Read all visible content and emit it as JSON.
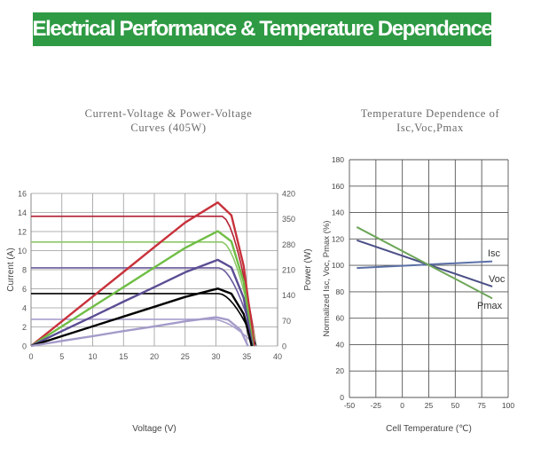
{
  "banner": {
    "text": "Electrical Performance & Temperature Dependence"
  },
  "colors": {
    "banner": "#2e9a44"
  },
  "chart_data": [
    {
      "type": "line",
      "title": "Current-Voltage & Power-Voltage Curves (405W)",
      "title_lines": [
        "Current-Voltage & Power-Voltage",
        "Curves (405W)"
      ],
      "xlabel": "Voltage (V)",
      "ylabel": "Current (A)",
      "y2label": "Power (W)",
      "xlim": [
        0,
        40
      ],
      "ylim": [
        0,
        16
      ],
      "y2lim": [
        0,
        420
      ],
      "xticks": [
        "0",
        "5",
        "10",
        "15",
        "20",
        "25",
        "30",
        "35",
        "40"
      ],
      "yticks": [
        "0",
        "2",
        "4",
        "6",
        "8",
        "10",
        "12",
        "14",
        "16"
      ],
      "y2ticks": [
        "0",
        "70",
        "140",
        "210",
        "280",
        "350",
        "420"
      ],
      "grid": true,
      "voc": 36.5,
      "series": [
        {
          "kind": "current",
          "color": "#b22234",
          "isc": 13.6,
          "knee": 31
        },
        {
          "kind": "current",
          "color": "#8cc867",
          "isc": 10.9,
          "knee": 31
        },
        {
          "kind": "current",
          "color": "#6b5a9e",
          "isc": 8.2,
          "knee": 30.5
        },
        {
          "kind": "current",
          "color": "#000000",
          "isc": 5.5,
          "knee": 30.5
        },
        {
          "kind": "current",
          "color": "#a89fcc",
          "isc": 2.8,
          "knee": 29.5
        },
        {
          "kind": "power",
          "color": "#c8323c",
          "x": [
            0,
            5,
            10,
            15,
            20,
            25,
            30.3,
            32.5,
            34.5,
            36.2
          ],
          "y": [
            0,
            68,
            136,
            204,
            272,
            340,
            395,
            360,
            220,
            0
          ]
        },
        {
          "kind": "power",
          "color": "#6fbd45",
          "x": [
            0,
            5,
            10,
            15,
            20,
            25,
            30.3,
            32.5,
            34.5,
            36
          ],
          "y": [
            0,
            54,
            108,
            162,
            216,
            270,
            316,
            288,
            176,
            0
          ]
        },
        {
          "kind": "power",
          "color": "#5b4d94",
          "x": [
            0,
            5,
            10,
            15,
            20,
            25,
            30.3,
            32.5,
            34.5,
            35.9
          ],
          "y": [
            0,
            41,
            81,
            122,
            162,
            203,
            237,
            216,
            132,
            0
          ]
        },
        {
          "kind": "power",
          "color": "#000000",
          "x": [
            0,
            5,
            10,
            15,
            20,
            25,
            30.3,
            32.5,
            34.5,
            35.8
          ],
          "y": [
            0,
            27,
            54,
            81,
            108,
            135,
            158,
            144,
            88,
            0
          ]
        },
        {
          "kind": "power",
          "color": "#a49bc9",
          "x": [
            0,
            5,
            10,
            15,
            20,
            25,
            30,
            32,
            34,
            35.2
          ],
          "y": [
            0,
            14,
            27,
            41,
            54,
            68,
            79,
            72,
            44,
            0
          ]
        }
      ]
    },
    {
      "type": "line",
      "title": "Temperature Dependence of Isc,Voc,Pmax",
      "title_lines": [
        "Temperature Dependence of",
        "Isc,Voc,Pmax"
      ],
      "xlabel": "Cell Temperature (℃)",
      "ylabel": "Normalized Isc, Voc, Pmax (%)",
      "xlim": [
        -50,
        100
      ],
      "ylim": [
        0,
        180
      ],
      "xticks": [
        "-50",
        "-25",
        "0",
        "25",
        "50",
        "75",
        "100"
      ],
      "yticks": [
        "0",
        "20",
        "40",
        "60",
        "80",
        "100",
        "120",
        "140",
        "160",
        "180"
      ],
      "grid": true,
      "series": [
        {
          "name": "Isc",
          "color": "#5b6fa6",
          "x": [
            -43,
            85
          ],
          "y": [
            98,
            103
          ]
        },
        {
          "name": "Voc",
          "color": "#4b4f86",
          "x": [
            -43,
            85
          ],
          "y": [
            119,
            84
          ]
        },
        {
          "name": "Pmax",
          "color": "#6ea65a",
          "x": [
            -43,
            85
          ],
          "y": [
            129,
            75
          ]
        }
      ]
    }
  ]
}
